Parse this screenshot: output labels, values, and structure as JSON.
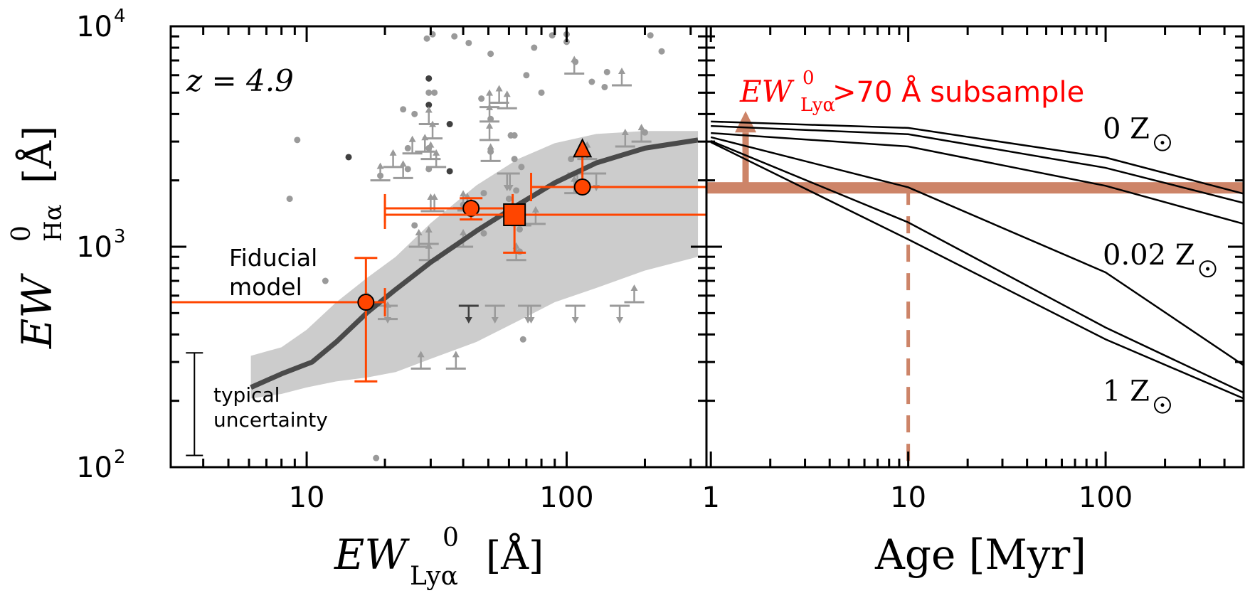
{
  "chart_data": [
    {
      "type": "scatter",
      "panel": "left",
      "title": "",
      "annotation_redshift": "z = 4.9",
      "xlabel": "EW⁰_Lyα [Å]",
      "xlabel_parts": {
        "main": "EW",
        "sup": "0",
        "sub": "Lyα",
        "unit": "[Å]"
      },
      "ylabel": "EW⁰_Hα [Å]",
      "ylabel_parts": {
        "main": "EW",
        "sup": "0",
        "sub": "Hα",
        "unit": "[Å]"
      },
      "xscale": "log",
      "yscale": "log",
      "xlim": [
        3.0,
        345
      ],
      "ylim": [
        100,
        10000
      ],
      "xticks": [
        {
          "value": 10,
          "label": "10"
        },
        {
          "value": 100,
          "label": "100"
        }
      ],
      "yticks": [
        {
          "value": 100,
          "label": "10",
          "exp": "2"
        },
        {
          "value": 1000,
          "label": "10",
          "exp": "3"
        },
        {
          "value": 10000,
          "label": "10",
          "exp": "4"
        }
      ],
      "fiducial_label": [
        "Fiducial",
        "model"
      ],
      "uncertainty_label": [
        "typical",
        "uncertainty"
      ],
      "typical_uncertainty": {
        "x": 3.7,
        "ylow": 113,
        "yhigh": 330
      },
      "fiducial_model": {
        "x": [
          6.1,
          8,
          10.5,
          13,
          17,
          22,
          30,
          45,
          65,
          90,
          130,
          200,
          320
        ],
        "y": [
          230,
          265,
          300,
          370,
          500,
          640,
          850,
          1180,
          1550,
          1950,
          2400,
          2800,
          3050
        ]
      },
      "fiducial_band": {
        "x": [
          6.1,
          8,
          10,
          13,
          17,
          22,
          30,
          45,
          65,
          90,
          130,
          200,
          320
        ],
        "upper": [
          320,
          350,
          420,
          560,
          720,
          900,
          1280,
          1900,
          2500,
          2950,
          3250,
          3350,
          3350
        ],
        "lower": [
          205,
          215,
          230,
          245,
          255,
          270,
          310,
          370,
          460,
          560,
          650,
          780,
          900
        ]
      },
      "scatter_points": [
        {
          "x": 9.2,
          "y": 3050,
          "shade": "light"
        },
        {
          "x": 8.6,
          "y": 1650,
          "shade": "light"
        },
        {
          "x": 14.5,
          "y": 2550,
          "shade": "dark"
        },
        {
          "x": 19.2,
          "y": 2100,
          "shade": "light"
        },
        {
          "x": 11.8,
          "y": 700,
          "shade": "light"
        },
        {
          "x": 17,
          "y": 600,
          "shade": "light"
        },
        {
          "x": 18.5,
          "y": 110,
          "shade": "light"
        },
        {
          "x": 23.5,
          "y": 4200,
          "shade": "light"
        },
        {
          "x": 26,
          "y": 4000,
          "shade": "light"
        },
        {
          "x": 29,
          "y": 8800,
          "shade": "light"
        },
        {
          "x": 30.5,
          "y": 9200,
          "shade": "light"
        },
        {
          "x": 29.5,
          "y": 5800,
          "shade": "dark"
        },
        {
          "x": 29.5,
          "y": 5000,
          "shade": "light"
        },
        {
          "x": 31,
          "y": 5000,
          "shade": "light"
        },
        {
          "x": 29.5,
          "y": 4400,
          "shade": "dark"
        },
        {
          "x": 24.5,
          "y": 2800,
          "shade": "light"
        },
        {
          "x": 24.5,
          "y": 2250,
          "shade": "light"
        },
        {
          "x": 29.5,
          "y": 2800,
          "shade": "light"
        },
        {
          "x": 29.5,
          "y": 2250,
          "shade": "light"
        },
        {
          "x": 35.5,
          "y": 3600,
          "shade": "dark"
        },
        {
          "x": 35.5,
          "y": 2200,
          "shade": "dark"
        },
        {
          "x": 37,
          "y": 9000,
          "shade": "light"
        },
        {
          "x": 42,
          "y": 8400,
          "shade": "light"
        },
        {
          "x": 47,
          "y": 4700,
          "shade": "light"
        },
        {
          "x": 51,
          "y": 7500,
          "shade": "light"
        },
        {
          "x": 51,
          "y": 2700,
          "shade": "light"
        },
        {
          "x": 51,
          "y": 3800,
          "shade": "light"
        },
        {
          "x": 61,
          "y": 3200,
          "shade": "light"
        },
        {
          "x": 63,
          "y": 3200,
          "shade": "light"
        },
        {
          "x": 63,
          "y": 2500,
          "shade": "light"
        },
        {
          "x": 67,
          "y": 2300,
          "shade": "light"
        },
        {
          "x": 70,
          "y": 6000,
          "shade": "light"
        },
        {
          "x": 75,
          "y": 8000,
          "shade": "light"
        },
        {
          "x": 80,
          "y": 5000,
          "shade": "light"
        },
        {
          "x": 88,
          "y": 9100,
          "shade": "light"
        },
        {
          "x": 100,
          "y": 9200,
          "shade": "light"
        },
        {
          "x": 100,
          "y": 8500,
          "shade": "light"
        },
        {
          "x": 108,
          "y": 6900,
          "shade": "light"
        },
        {
          "x": 125,
          "y": 5600,
          "shade": "light"
        },
        {
          "x": 143,
          "y": 6200,
          "shade": "light"
        },
        {
          "x": 140,
          "y": 5300,
          "shade": "light"
        },
        {
          "x": 48,
          "y": 1750,
          "shade": "light"
        },
        {
          "x": 40,
          "y": 1550,
          "shade": "light"
        },
        {
          "x": 48,
          "y": 1150,
          "shade": "light"
        },
        {
          "x": 60,
          "y": 1650,
          "shade": "light"
        },
        {
          "x": 64,
          "y": 1800,
          "shade": "light"
        },
        {
          "x": 66,
          "y": 1200,
          "shade": "light"
        },
        {
          "x": 66,
          "y": 950,
          "shade": "light"
        },
        {
          "x": 104,
          "y": 2500,
          "shade": "light"
        },
        {
          "x": 108,
          "y": 2150,
          "shade": "light"
        },
        {
          "x": 210,
          "y": 9100,
          "shade": "light"
        },
        {
          "x": 232,
          "y": 7700,
          "shade": "light"
        },
        {
          "x": 200,
          "y": 3300,
          "shade": "light"
        },
        {
          "x": 26,
          "y": 1250,
          "shade": "light"
        },
        {
          "x": 68,
          "y": 380,
          "shade": "light"
        },
        {
          "x": 16.8,
          "y": 590,
          "shade": "light"
        }
      ],
      "lower_limits": [
        {
          "x": 19.2,
          "y": 2000,
          "shade": "light"
        },
        {
          "x": 21.5,
          "y": 2300,
          "shade": "light"
        },
        {
          "x": 23.5,
          "y": 2050,
          "shade": "light"
        },
        {
          "x": 25.5,
          "y": 2650,
          "shade": "light"
        },
        {
          "x": 28.5,
          "y": 2700,
          "shade": "light"
        },
        {
          "x": 30,
          "y": 2500,
          "shade": "light"
        },
        {
          "x": 29.5,
          "y": 3600,
          "shade": "light"
        },
        {
          "x": 30.5,
          "y": 3100,
          "shade": "light"
        },
        {
          "x": 31.5,
          "y": 2300,
          "shade": "light"
        },
        {
          "x": 30,
          "y": 1450,
          "shade": "light"
        },
        {
          "x": 31,
          "y": 1450,
          "shade": "light"
        },
        {
          "x": 27,
          "y": 1000,
          "shade": "light"
        },
        {
          "x": 29.5,
          "y": 870,
          "shade": "light"
        },
        {
          "x": 29.5,
          "y": 1030,
          "shade": "light"
        },
        {
          "x": 40,
          "y": 1000,
          "shade": "light"
        },
        {
          "x": 40,
          "y": 1500,
          "shade": "light"
        },
        {
          "x": 41.5,
          "y": 1460,
          "shade": "light"
        },
        {
          "x": 27.5,
          "y": 280,
          "shade": "light"
        },
        {
          "x": 37.5,
          "y": 280,
          "shade": "light"
        },
        {
          "x": 20.5,
          "y": 470,
          "shade": "light"
        },
        {
          "x": 50.5,
          "y": 4300,
          "shade": "light"
        },
        {
          "x": 55,
          "y": 4500,
          "shade": "light"
        },
        {
          "x": 59,
          "y": 4250,
          "shade": "light"
        },
        {
          "x": 50.5,
          "y": 3700,
          "shade": "light"
        },
        {
          "x": 50.5,
          "y": 3050,
          "shade": "light"
        },
        {
          "x": 51,
          "y": 2450,
          "shade": "light"
        },
        {
          "x": 67,
          "y": 1250,
          "shade": "light"
        },
        {
          "x": 76,
          "y": 1270,
          "shade": "light"
        },
        {
          "x": 64,
          "y": 870,
          "shade": "light"
        },
        {
          "x": 107,
          "y": 6100,
          "shade": "light"
        },
        {
          "x": 163,
          "y": 5400,
          "shade": "light"
        },
        {
          "x": 168,
          "y": 2850,
          "shade": "light"
        },
        {
          "x": 182,
          "y": 560,
          "shade": "light"
        },
        {
          "x": 107,
          "y": 1750,
          "shade": "light"
        },
        {
          "x": 120,
          "y": 2500,
          "shade": "light"
        },
        {
          "x": 194,
          "y": 3000,
          "shade": "light"
        }
      ],
      "upper_limits": [
        {
          "x": 42,
          "y": 540,
          "shade": "dark"
        },
        {
          "x": 53,
          "y": 540,
          "shade": "light"
        },
        {
          "x": 71,
          "y": 540,
          "shade": "light"
        },
        {
          "x": 73,
          "y": 540,
          "shade": "light"
        },
        {
          "x": 108,
          "y": 540,
          "shade": "light"
        },
        {
          "x": 160,
          "y": 540,
          "shade": "light"
        },
        {
          "x": 20.5,
          "y": 540,
          "shade": "light"
        },
        {
          "x": 59,
          "y": 2150,
          "shade": "light"
        },
        {
          "x": 60.5,
          "y": 2150,
          "shade": "light"
        },
        {
          "x": 110,
          "y": 2150,
          "shade": "light"
        },
        {
          "x": 130,
          "y": 2150,
          "shade": "light"
        }
      ],
      "highlighted": [
        {
          "marker": "circle",
          "x": 16.9,
          "y": 560,
          "xerr": [
            3.0,
            20.0
          ],
          "yerr": [
            245,
            890
          ],
          "color": "#ff4500"
        },
        {
          "marker": "circle",
          "x": 42.9,
          "y": 1494,
          "xerr": [
            20.0,
            62.0
          ],
          "yerr": [
            1330,
            1660
          ],
          "color": "#ff4500"
        },
        {
          "marker": "square",
          "x": 63,
          "y": 1397,
          "xerr": [
            20.0,
            345
          ],
          "yerr": [
            940,
            1397
          ],
          "color": "#ff4500"
        },
        {
          "marker": "circle",
          "x": 115,
          "y": 1866,
          "xerr": [
            73,
            345
          ],
          "yerr": [
            1866,
            2800
          ],
          "color": "#ff4500",
          "limit_marker": "triangle-up",
          "limit_y": 2800
        }
      ],
      "colors": {
        "highlight": "#ff4500",
        "scatter_light": "#9a9a9a",
        "scatter_dark": "#404040",
        "fiducial_line": "#4a4a4a",
        "fiducial_band": "#cccccc"
      }
    },
    {
      "type": "line",
      "panel": "right",
      "xlabel": "Age [Myr]",
      "xscale": "log",
      "yscale": "log",
      "xlim": [
        0.95,
        500
      ],
      "ylim": [
        100,
        10000
      ],
      "xticks": [
        {
          "value": 1,
          "label": "1"
        },
        {
          "value": 10,
          "label": "10"
        },
        {
          "value": 100,
          "label": "100"
        }
      ],
      "subsample_label": {
        "main": "EW",
        "sup": "0",
        "sub": "Lyα",
        "rest": " >70 Å subsample"
      },
      "subsample_value": 1850,
      "subsample_age_limit": 10,
      "subsample_arrow_age": 1.5,
      "metallicity_labels": [
        {
          "text": "0 Z",
          "y": 3100
        },
        {
          "text": "0.02 Z",
          "y": 830
        },
        {
          "text": "1 Z",
          "y": 200
        }
      ],
      "series": [
        {
          "name": "track-1",
          "x": [
            1,
            10,
            100,
            500
          ],
          "values": [
            3700,
            3460,
            2540,
            1740
          ]
        },
        {
          "name": "track-2",
          "x": [
            1,
            10,
            100,
            500
          ],
          "values": [
            3530,
            3240,
            2280,
            1580
          ]
        },
        {
          "name": "track-3",
          "x": [
            1,
            10,
            100,
            500
          ],
          "values": [
            3280,
            2850,
            1890,
            1270
          ]
        },
        {
          "name": "track-4",
          "x": [
            1,
            10,
            100,
            500
          ],
          "values": [
            3140,
            1860,
            765,
            290
          ]
        },
        {
          "name": "track-5",
          "x": [
            1,
            10,
            100,
            500
          ],
          "values": [
            3020,
            1290,
            430,
            218
          ]
        },
        {
          "name": "track-6",
          "x": [
            1,
            10,
            100,
            500
          ],
          "values": [
            2980,
            1080,
            380,
            205
          ]
        }
      ],
      "colors": {
        "subsample": "#cd8468",
        "subsample_text": "#ff0000",
        "tracks": "#000000"
      }
    }
  ]
}
